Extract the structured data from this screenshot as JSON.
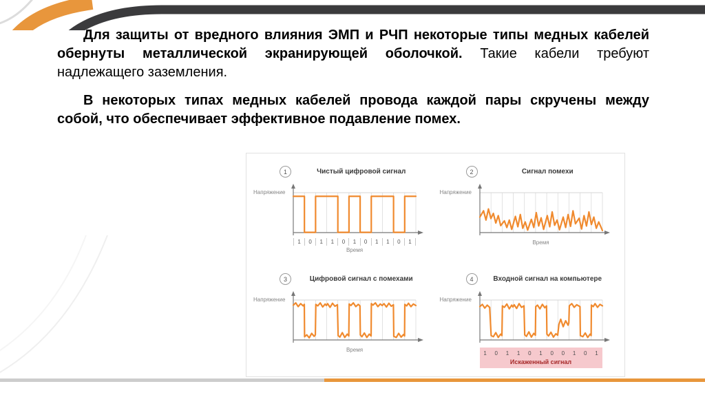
{
  "slide": {
    "paragraph1_bold": "Для защиты от вредного влияния ЭМП и РЧП некоторые типы медных кабелей обернуты металлической экранирующей оболочкой.",
    "paragraph1_regular": " Такие кабели требуют надлежащего заземления.",
    "paragraph2": "В некоторых типах медных кабелей провода каждой пары скручены между собой, что обеспечивает эффективное подавление помех."
  },
  "theme": {
    "accent_orange": "#e8963c",
    "band_dark": "#3b3b3d",
    "line_gray": "#cdcdcd",
    "band_pink": "#f6c9cd",
    "band_text_red": "#a62a2a"
  },
  "figure_style": {
    "signal_color": "#f08a2e",
    "grid_color": "#d6d6d6",
    "axis_color": "#777777"
  },
  "chart_data": [
    {
      "type": "line",
      "number": "1",
      "title": "Чистый цифровой сигнал",
      "ylabel": "Напряжение",
      "xlabel": "Время",
      "waveform": "square",
      "bits": [
        1,
        0,
        1,
        1,
        0,
        1,
        0,
        1,
        1,
        0,
        1
      ]
    },
    {
      "type": "line",
      "number": "2",
      "title": "Сигнал помехи",
      "ylabel": "Напряжение",
      "xlabel": "Время",
      "waveform": "points",
      "points": [
        [
          0,
          62
        ],
        [
          3,
          45
        ],
        [
          5,
          70
        ],
        [
          7,
          40
        ],
        [
          9,
          66
        ],
        [
          11,
          52
        ],
        [
          13,
          78
        ],
        [
          15,
          58
        ],
        [
          17,
          85
        ],
        [
          20,
          72
        ],
        [
          22,
          90
        ],
        [
          24,
          70
        ],
        [
          26,
          95
        ],
        [
          29,
          60
        ],
        [
          31,
          88
        ],
        [
          33,
          55
        ],
        [
          35,
          92
        ],
        [
          37,
          75
        ],
        [
          39,
          97
        ],
        [
          42,
          68
        ],
        [
          44,
          90
        ],
        [
          46,
          50
        ],
        [
          48,
          86
        ],
        [
          50,
          64
        ],
        [
          52,
          95
        ],
        [
          55,
          58
        ],
        [
          57,
          88
        ],
        [
          59,
          48
        ],
        [
          61,
          84
        ],
        [
          63,
          70
        ],
        [
          65,
          96
        ],
        [
          68,
          62
        ],
        [
          70,
          90
        ],
        [
          72,
          55
        ],
        [
          74,
          87
        ],
        [
          76,
          45
        ],
        [
          78,
          80
        ],
        [
          81,
          65
        ],
        [
          83,
          94
        ],
        [
          85,
          58
        ],
        [
          87,
          86
        ],
        [
          89,
          48
        ],
        [
          91,
          82
        ],
        [
          93,
          62
        ],
        [
          95,
          92
        ],
        [
          97,
          75
        ],
        [
          100,
          98
        ]
      ]
    },
    {
      "type": "line",
      "number": "3",
      "title": "Цифровой сигнал с помехами",
      "ylabel": "Напряжение",
      "xlabel": "Время",
      "waveform": "points",
      "points": [
        [
          0,
          10
        ],
        [
          2,
          4
        ],
        [
          4,
          14
        ],
        [
          6,
          6
        ],
        [
          8,
          12
        ],
        [
          9,
          8
        ],
        [
          9.2,
          95
        ],
        [
          11,
          90
        ],
        [
          13,
          98
        ],
        [
          15,
          86
        ],
        [
          17,
          94
        ],
        [
          18,
          90
        ],
        [
          18.4,
          8
        ],
        [
          20,
          12
        ],
        [
          22,
          4
        ],
        [
          24,
          15
        ],
        [
          26,
          7
        ],
        [
          27,
          11
        ],
        [
          28,
          6
        ],
        [
          30,
          16
        ],
        [
          32,
          5
        ],
        [
          34,
          13
        ],
        [
          36,
          9
        ],
        [
          36.6,
          92
        ],
        [
          38,
          96
        ],
        [
          40,
          84
        ],
        [
          42,
          97
        ],
        [
          44,
          88
        ],
        [
          45.3,
          93
        ],
        [
          45.6,
          7
        ],
        [
          47,
          11
        ],
        [
          49,
          4
        ],
        [
          51,
          14
        ],
        [
          53,
          8
        ],
        [
          54.4,
          12
        ],
        [
          54.7,
          90
        ],
        [
          56,
          95
        ],
        [
          58,
          85
        ],
        [
          60,
          97
        ],
        [
          62,
          88
        ],
        [
          63.5,
          93
        ],
        [
          63.7,
          6
        ],
        [
          65,
          10
        ],
        [
          67,
          4
        ],
        [
          69,
          14
        ],
        [
          71,
          7
        ],
        [
          72.6,
          11
        ],
        [
          74,
          6
        ],
        [
          76,
          15
        ],
        [
          78,
          5
        ],
        [
          80,
          13
        ],
        [
          81.7,
          9
        ],
        [
          82,
          94
        ],
        [
          84,
          97
        ],
        [
          86,
          86
        ],
        [
          88,
          96
        ],
        [
          90,
          89
        ],
        [
          90.8,
          93
        ],
        [
          91,
          8
        ],
        [
          92.5,
          12
        ],
        [
          94,
          5
        ],
        [
          96,
          14
        ],
        [
          98,
          7
        ],
        [
          100,
          11
        ]
      ]
    },
    {
      "type": "line",
      "number": "4",
      "title": "Входной сигнал на компьютере",
      "ylabel": "Напряжение",
      "waveform": "points",
      "points": [
        [
          0,
          14
        ],
        [
          2,
          8
        ],
        [
          4,
          18
        ],
        [
          6,
          10
        ],
        [
          8,
          16
        ],
        [
          9.2,
          92
        ],
        [
          11,
          95
        ],
        [
          13,
          84
        ],
        [
          15,
          97
        ],
        [
          17,
          88
        ],
        [
          18,
          92
        ],
        [
          18.4,
          12
        ],
        [
          20,
          16
        ],
        [
          22,
          7
        ],
        [
          24,
          20
        ],
        [
          26,
          10
        ],
        [
          27,
          15
        ],
        [
          28,
          9
        ],
        [
          30,
          19
        ],
        [
          32,
          6
        ],
        [
          34,
          16
        ],
        [
          36,
          12
        ],
        [
          36.6,
          90
        ],
        [
          38,
          94
        ],
        [
          40,
          82
        ],
        [
          42,
          96
        ],
        [
          44,
          86
        ],
        [
          45.3,
          91
        ],
        [
          45.6,
          14
        ],
        [
          47,
          10
        ],
        [
          49,
          20
        ],
        [
          51,
          8
        ],
        [
          53,
          17
        ],
        [
          54.4,
          12
        ],
        [
          54.7,
          88
        ],
        [
          56,
          93
        ],
        [
          58,
          83
        ],
        [
          60,
          96
        ],
        [
          62,
          87
        ],
        [
          63.5,
          91
        ],
        [
          64.5,
          62
        ],
        [
          66,
          48
        ],
        [
          68,
          68
        ],
        [
          70,
          52
        ],
        [
          72,
          64
        ],
        [
          72.6,
          58
        ],
        [
          73,
          12
        ],
        [
          75,
          6
        ],
        [
          77,
          16
        ],
        [
          79,
          9
        ],
        [
          81.7,
          14
        ],
        [
          82,
          92
        ],
        [
          84,
          95
        ],
        [
          86,
          85
        ],
        [
          88,
          97
        ],
        [
          90,
          88
        ],
        [
          90.8,
          92
        ],
        [
          91,
          10
        ],
        [
          92.5,
          14
        ],
        [
          94,
          6
        ],
        [
          96,
          16
        ],
        [
          98,
          8
        ],
        [
          100,
          12
        ]
      ],
      "band_bits": [
        1,
        0,
        1,
        1,
        0,
        1,
        0,
        0,
        1,
        0,
        1
      ],
      "band_label": "Искаженный сигнал",
      "band_bg": "#f6c9cd",
      "band_label_color": "#a62a2a"
    }
  ]
}
